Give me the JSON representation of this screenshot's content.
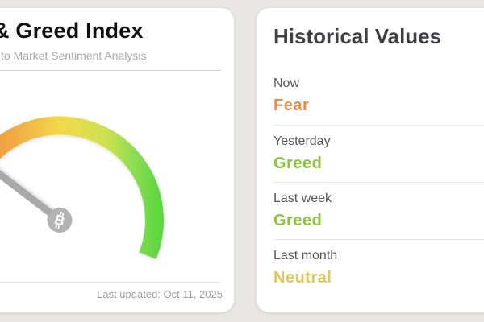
{
  "page": {
    "background": "#e8e7e4"
  },
  "gauge_card": {
    "title": "& Greed Index",
    "subtitle": "to Market Sentiment Analysis",
    "last_updated": "Last updated: Oct 11, 2025",
    "gauge": {
      "current_sentiment": "Fear",
      "needle_angle_deg": 142.5,
      "arc_colors": [
        "#ec8b3a",
        "#f0a945",
        "#f2d84b",
        "#cfe24f",
        "#8edd52",
        "#5fd740"
      ],
      "needle_color": "#a9a9a9",
      "hub_color": "#b3b3b3",
      "bitcoin_symbol": "B"
    }
  },
  "history_card": {
    "title": "Historical Values",
    "rows": [
      {
        "label": "Now",
        "value": "Fear",
        "tone": "fear"
      },
      {
        "label": "Yesterday",
        "value": "Greed",
        "tone": "greed"
      },
      {
        "label": "Last week",
        "value": "Greed",
        "tone": "greed"
      },
      {
        "label": "Last month",
        "value": "Neutral",
        "tone": "neutral"
      }
    ],
    "tone_colors": {
      "fear": "#e78c4a",
      "greed": "#8cc43d",
      "neutral": "#e0ca52"
    }
  }
}
